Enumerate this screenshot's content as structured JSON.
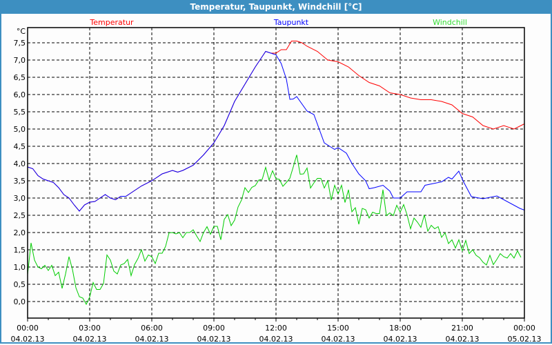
{
  "window": {
    "title": "Temperatur, Taupunkt, Windchill [°C]"
  },
  "chart_data": {
    "type": "line",
    "title": "Temperatur, Taupunkt, Windchill [°C]",
    "ylabel": "°C",
    "ylim": [
      -0.5,
      8.0
    ],
    "xlim_hours": [
      0,
      24
    ],
    "grid": true,
    "y_ticks": [
      "0,0",
      "0,5",
      "1,0",
      "1,5",
      "2,0",
      "2,5",
      "3,0",
      "3,5",
      "4,0",
      "4,5",
      "5,0",
      "5,5",
      "6,0",
      "6,5",
      "7,0",
      "7,5"
    ],
    "y_tick_values": [
      0,
      0.5,
      1,
      1.5,
      2,
      2.5,
      3,
      3.5,
      4,
      4.5,
      5,
      5.5,
      6,
      6.5,
      7,
      7.5
    ],
    "x_ticks": [
      {
        "time": "00:00",
        "date": "04.02.13"
      },
      {
        "time": "03:00",
        "date": "04.02.13"
      },
      {
        "time": "06:00",
        "date": "04.02.13"
      },
      {
        "time": "09:00",
        "date": "04.02.13"
      },
      {
        "time": "12:00",
        "date": "04.02.13"
      },
      {
        "time": "15:00",
        "date": "04.02.13"
      },
      {
        "time": "18:00",
        "date": "04.02.13"
      },
      {
        "time": "21:00",
        "date": "04.02.13"
      },
      {
        "time": "00:00",
        "date": "05.02.13"
      }
    ],
    "legend": [
      {
        "name": "Temperatur",
        "color": "#ff0000",
        "position": "top-left"
      },
      {
        "name": "Taupunkt",
        "color": "#0000ff",
        "position": "top-center"
      },
      {
        "name": "Windchill",
        "color": "#00cc00",
        "position": "top-right"
      }
    ],
    "series": [
      {
        "name": "Temperatur",
        "color": "#ff0000",
        "hours": [
          0,
          0.25,
          0.5,
          0.75,
          1,
          1.25,
          1.5,
          1.75,
          2,
          2.25,
          2.5,
          2.75,
          3,
          3.25,
          3.5,
          3.75,
          4,
          4.25,
          4.5,
          4.75,
          5,
          5.5,
          6,
          6.5,
          7,
          7.25,
          7.5,
          8,
          8.5,
          9,
          9.5,
          10,
          10.5,
          11,
          11.5,
          11.75,
          12,
          12.25,
          12.5,
          12.75,
          13,
          13.25,
          13.5,
          14,
          14.5,
          15,
          15.5,
          16,
          16.5,
          17,
          17.5,
          18,
          18.5,
          19,
          19.5,
          20,
          20.5,
          21,
          21.5,
          22,
          22.5,
          23,
          23.5,
          24
        ],
        "values": [
          3.9,
          3.85,
          3.65,
          3.55,
          3.5,
          3.45,
          3.3,
          3.1,
          3.0,
          2.8,
          2.62,
          2.8,
          2.88,
          2.9,
          3.0,
          3.1,
          3.0,
          2.95,
          3.05,
          3.05,
          3.15,
          3.35,
          3.5,
          3.7,
          3.8,
          3.75,
          3.8,
          3.95,
          4.25,
          4.6,
          5.1,
          5.8,
          6.3,
          6.8,
          7.25,
          7.2,
          7.2,
          7.3,
          7.3,
          7.55,
          7.55,
          7.5,
          7.4,
          7.25,
          7.0,
          6.95,
          6.8,
          6.55,
          6.35,
          6.25,
          6.05,
          6.0,
          5.9,
          5.85,
          5.85,
          5.8,
          5.7,
          5.45,
          5.35,
          5.1,
          5.0,
          5.1,
          5.0,
          5.15
        ]
      },
      {
        "name": "Taupunkt",
        "color": "#0000ff",
        "hours": [
          0,
          0.25,
          0.5,
          0.75,
          1,
          1.25,
          1.5,
          1.75,
          2,
          2.25,
          2.5,
          2.75,
          3,
          3.25,
          3.5,
          3.75,
          4,
          4.25,
          4.5,
          4.75,
          5,
          5.5,
          6,
          6.5,
          7,
          7.25,
          7.5,
          8,
          8.5,
          9,
          9.5,
          10,
          10.5,
          11,
          11.5,
          11.75,
          12,
          12.25,
          12.5,
          12.67,
          12.83,
          13,
          13.5,
          13.83,
          14.33,
          14.67,
          14.83,
          15,
          15.4,
          15.67,
          16,
          16.33,
          16.5,
          16.75,
          17.17,
          17.5,
          17.67,
          18,
          18.33,
          19,
          19.2,
          20,
          20.33,
          20.5,
          20.83,
          21.06,
          21.44,
          22,
          22.67,
          23.78,
          24
        ],
        "values": [
          3.9,
          3.85,
          3.65,
          3.55,
          3.5,
          3.45,
          3.3,
          3.1,
          3.0,
          2.8,
          2.62,
          2.8,
          2.88,
          2.9,
          3.0,
          3.1,
          3.0,
          2.95,
          3.05,
          3.05,
          3.15,
          3.35,
          3.5,
          3.7,
          3.8,
          3.75,
          3.8,
          3.95,
          4.25,
          4.6,
          5.1,
          5.8,
          6.3,
          6.8,
          7.25,
          7.2,
          7.15,
          6.9,
          6.45,
          5.86,
          5.87,
          5.94,
          5.52,
          5.42,
          4.6,
          4.47,
          4.41,
          4.46,
          4.3,
          4.0,
          3.7,
          3.5,
          3.27,
          3.3,
          3.37,
          3.2,
          3.0,
          3.0,
          3.18,
          3.18,
          3.37,
          3.47,
          3.6,
          3.55,
          3.78,
          3.47,
          3.04,
          2.98,
          3.06,
          2.7,
          2.65
        ]
      },
      {
        "name": "Windchill",
        "color": "#00cc00",
        "start_hour": 0,
        "step_minutes": 10,
        "values": [
          0.78,
          1.7,
          1.2,
          1.0,
          0.95,
          1.05,
          0.9,
          1.05,
          0.75,
          0.85,
          0.38,
          0.8,
          1.3,
          0.93,
          0.4,
          0.14,
          0.1,
          -0.08,
          0.13,
          0.55,
          0.35,
          0.35,
          0.52,
          1.35,
          1.2,
          0.88,
          0.8,
          1.06,
          1.1,
          1.22,
          0.75,
          1.07,
          1.25,
          1.5,
          1.17,
          1.35,
          1.3,
          1.1,
          1.4,
          1.4,
          1.6,
          1.99,
          2.0,
          1.96,
          2.0,
          1.85,
          2.0,
          2.0,
          2.08,
          1.9,
          1.74,
          2.0,
          2.17,
          1.95,
          2.18,
          2.18,
          1.79,
          2.38,
          2.52,
          2.2,
          2.36,
          2.74,
          2.94,
          3.3,
          3.16,
          3.31,
          3.36,
          3.52,
          3.54,
          3.89,
          3.52,
          3.79,
          3.56,
          3.54,
          3.34,
          3.45,
          3.57,
          3.9,
          4.25,
          3.69,
          3.7,
          3.87,
          3.29,
          3.44,
          3.57,
          3.57,
          3.29,
          3.5,
          2.94,
          3.37,
          3.12,
          3.37,
          2.87,
          3.24,
          2.6,
          2.72,
          2.24,
          2.7,
          2.66,
          2.42,
          2.59,
          2.55,
          2.55,
          3.24,
          2.49,
          2.57,
          2.49,
          2.79,
          2.59,
          2.81,
          2.51,
          2.11,
          2.42,
          2.3,
          2.15,
          2.51,
          2.04,
          2.21,
          2.11,
          2.17,
          1.86,
          1.99,
          1.68,
          1.79,
          1.55,
          1.79,
          1.47,
          1.77,
          1.39,
          1.5,
          1.34,
          1.27,
          1.14,
          1.06,
          1.34,
          1.07,
          1.22,
          1.39,
          1.3,
          1.26,
          1.39,
          1.26,
          1.47,
          1.28
        ]
      }
    ]
  }
}
